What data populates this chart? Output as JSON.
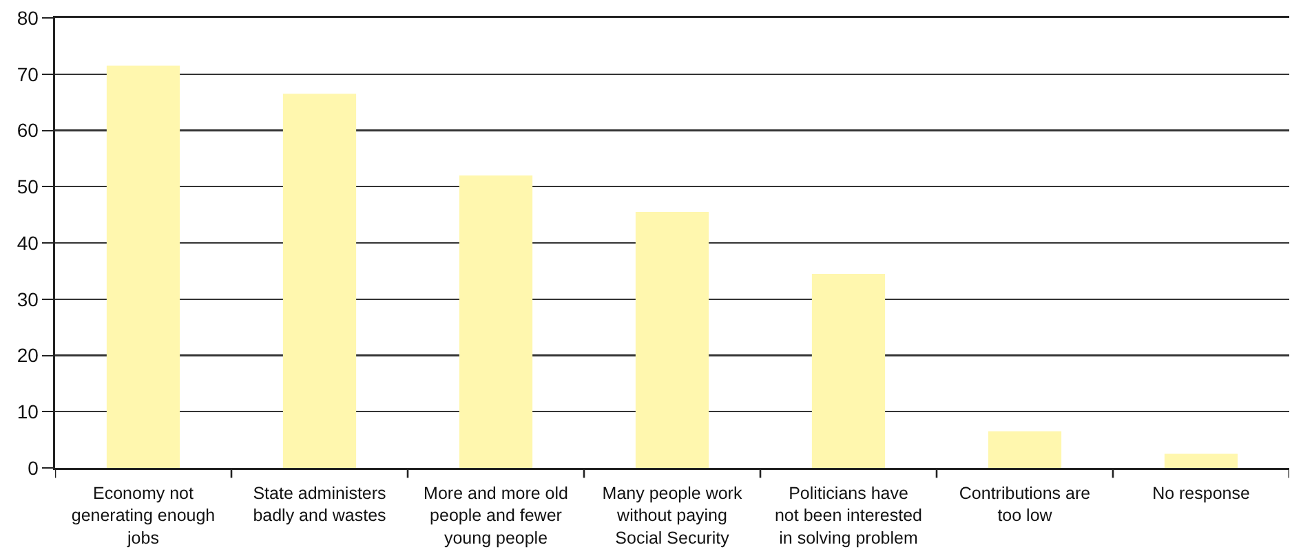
{
  "chart_data": {
    "type": "bar",
    "categories": [
      "Economy not generating enough jobs",
      "State administers badly and wastes",
      "More and more old people and fewer young people",
      "Many people work without paying Social Security",
      "Politicians have not been interested in solving problem",
      "Contributions are too low",
      "No response"
    ],
    "values": [
      71.5,
      66.5,
      52,
      45.5,
      34.5,
      6.5,
      2.5
    ],
    "color": "#fff7ae",
    "ylim": [
      0,
      80
    ],
    "yticks": [
      0,
      10,
      20,
      30,
      40,
      50,
      60,
      70,
      80
    ],
    "grid": "y"
  }
}
